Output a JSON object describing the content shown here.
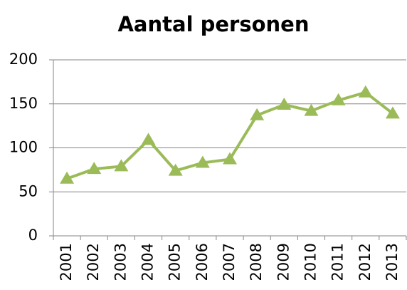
{
  "chart_data": {
    "type": "line",
    "title": "Aantal personen",
    "categories": [
      "2001",
      "2002",
      "2003",
      "2004",
      "2005",
      "2006",
      "2007",
      "2008",
      "2009",
      "2010",
      "2011",
      "2012",
      "2013"
    ],
    "series": [
      {
        "name": "Aantal personen",
        "color": "#9bbb59",
        "values": [
          65,
          76,
          79,
          109,
          74,
          83,
          87,
          137,
          149,
          142,
          154,
          163,
          139
        ]
      }
    ],
    "ylim": [
      0,
      200
    ],
    "yticks": [
      0,
      50,
      100,
      150,
      200
    ],
    "grid": true
  }
}
